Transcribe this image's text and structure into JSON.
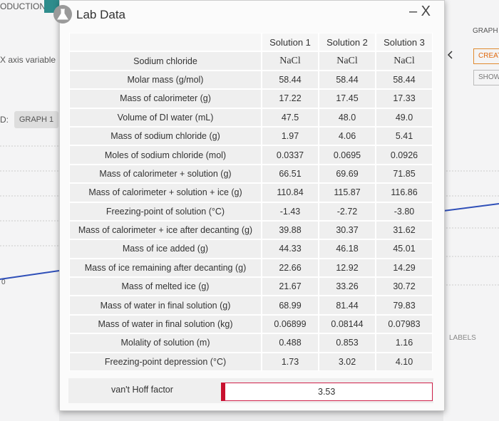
{
  "background": {
    "tab": "ODUCTION",
    "x_axis_label": "X axis variable",
    "d_label": "D:",
    "graph_button": "GRAPH 1",
    "axis_zero": "0",
    "graph_header": "GRAPH",
    "create_button": "CREAT",
    "show_button": "SHOW",
    "labels_text": "LABELS"
  },
  "dialog": {
    "title": "Lab Data",
    "close": "– X"
  },
  "table": {
    "header": [
      "Solution 1",
      "Solution 2",
      "Solution 3"
    ],
    "rows": [
      {
        "label": "Sodium chloride",
        "values": [
          "NaCl",
          "NaCl",
          "NaCl"
        ]
      },
      {
        "label": "Molar mass (g/mol)",
        "values": [
          "58.44",
          "58.44",
          "58.44"
        ]
      },
      {
        "label": "Mass of calorimeter (g)",
        "values": [
          "17.22",
          "17.45",
          "17.33"
        ]
      },
      {
        "label": "Volume of DI water (mL)",
        "values": [
          "47.5",
          "48.0",
          "49.0"
        ]
      },
      {
        "label": "Mass of sodium chloride (g)",
        "values": [
          "1.97",
          "4.06",
          "5.41"
        ]
      },
      {
        "label": "Moles of sodium chloride (mol)",
        "values": [
          "0.0337",
          "0.0695",
          "0.0926"
        ]
      },
      {
        "label": "Mass of calorimeter + solution (g)",
        "values": [
          "66.51",
          "69.69",
          "71.85"
        ]
      },
      {
        "label": "Mass of calorimeter + solution + ice (g)",
        "values": [
          "110.84",
          "115.87",
          "116.86"
        ]
      },
      {
        "label": "Freezing-point of solution (°C)",
        "values": [
          "-1.43",
          "-2.72",
          "-3.80"
        ]
      },
      {
        "label": "Mass of calorimeter + ice after decanting (g)",
        "values": [
          "39.88",
          "30.37",
          "31.62"
        ]
      },
      {
        "label": "Mass of ice added (g)",
        "values": [
          "44.33",
          "46.18",
          "45.01"
        ]
      },
      {
        "label": "Mass of ice remaining after decanting (g)",
        "values": [
          "22.66",
          "12.92",
          "14.29"
        ]
      },
      {
        "label": "Mass of melted ice (g)",
        "values": [
          "21.67",
          "33.26",
          "30.72"
        ]
      },
      {
        "label": "Mass of water in final solution (g)",
        "values": [
          "68.99",
          "81.44",
          "79.83"
        ]
      },
      {
        "label": "Mass of water in final solution (kg)",
        "values": [
          "0.06899",
          "0.08144",
          "0.07983"
        ]
      },
      {
        "label": "Molality of solution (m)",
        "values": [
          "0.488",
          "0.853",
          "1.16"
        ]
      },
      {
        "label": "Freezing-point depression (°C)",
        "values": [
          "1.73",
          "3.02",
          "4.10"
        ]
      }
    ]
  },
  "vant_hoff": {
    "label": "van't Hoff factor",
    "value": "3.53"
  }
}
